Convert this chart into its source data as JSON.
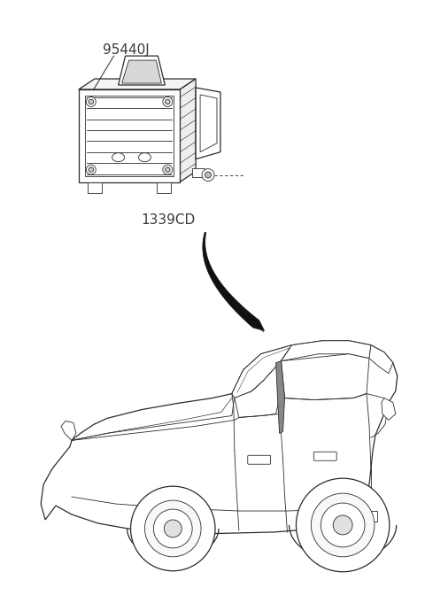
{
  "bg_color": "#ffffff",
  "part_label": "95440J",
  "location_label": "1339CD",
  "label_fontsize": 11,
  "label_color": "#3a3a3a",
  "arrow_color": "#111111",
  "figsize": [
    4.8,
    6.81
  ],
  "dpi": 100,
  "line_color": "#2a2a2a",
  "line_color_light": "#555555"
}
